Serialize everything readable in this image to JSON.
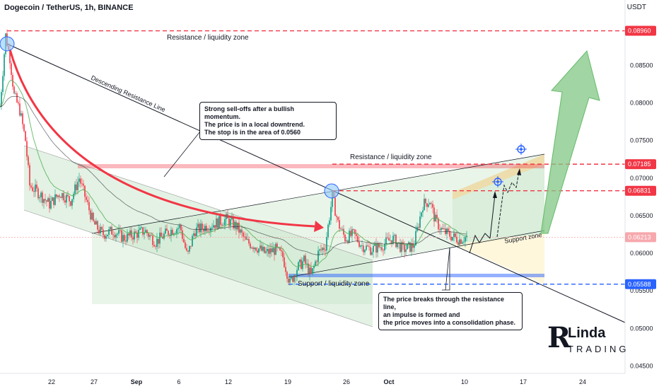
{
  "header": {
    "title": "Dogecoin / TetherUS, 1h, BINANCE",
    "unit": "USDT"
  },
  "chart_data": {
    "type": "line",
    "title": "Dogecoin / TetherUS, 1h, BINANCE",
    "ylim": [
      0.044,
      0.0937
    ],
    "y_ticks": [
      "0.08500",
      "0.08000",
      "0.07500",
      "0.07000",
      "0.06500",
      "0.06000",
      "0.05500",
      "0.05000",
      "0.04500"
    ],
    "x_ticks": [
      "22",
      "27",
      "Sep",
      "6",
      "12",
      "19",
      "26",
      "Oct",
      "10",
      "17",
      "24"
    ],
    "price_levels": [
      {
        "label": "0.08960",
        "value": 0.0896,
        "color": "#f23645"
      },
      {
        "label": "0.07185",
        "value": 0.07185,
        "color": "#f23645"
      },
      {
        "label": "0.06831",
        "value": 0.06831,
        "color": "#f23645"
      },
      {
        "label": "0.06213",
        "value": 0.06213,
        "color": "#f7a8ad"
      },
      {
        "label": "0.05588",
        "value": 0.05588,
        "color": "#2962ff"
      }
    ],
    "zone_labels": {
      "resistance_top": "Resistance / liquidity zone",
      "resistance_mid": "Resistance / liquidity zone",
      "support_bottom": "Support / liquidity zone",
      "support_right": "Support zone",
      "descending": "Descending Resistance Line"
    },
    "annotations": [
      "Strong sell-offs after a bullish momentum.\nThe price is in a local downtrend.\nThe stop is in the area of 0.0560",
      "The price breaks through the resistance line,\nan impulse is formed and\nthe price moves into a consolidation phase."
    ],
    "colors": {
      "up": "#089981",
      "down": "#f23645",
      "zone_green": "#c8e6c9",
      "level_red": "#f23645",
      "level_blue": "#2962ff",
      "arrow_green": "#81c784"
    }
  },
  "logo": {
    "big": "R",
    "line1": "Linda",
    "line2": "TRADING"
  }
}
